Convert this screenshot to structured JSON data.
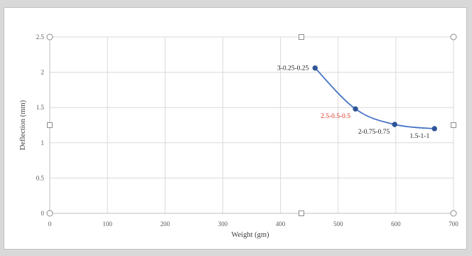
{
  "chart_data": {
    "type": "scatter",
    "title": "",
    "xlabel": "Weight  (gm)",
    "ylabel": "Deflection  (mm)",
    "xlim": [
      0,
      700
    ],
    "ylim": [
      0,
      2.5
    ],
    "x_ticks": [
      "0",
      "100",
      "200",
      "300",
      "400",
      "500",
      "600",
      "700"
    ],
    "y_ticks": [
      "0",
      "0.5",
      "1",
      "1.5",
      "2",
      "2.5"
    ],
    "grid": true,
    "legend": "none",
    "series": [
      {
        "line_color": "#4472c4",
        "marker_color": "#2e5597",
        "smooth": true,
        "points": [
          {
            "x": 460,
            "y": 2.06,
            "label": "3-0.25-0.25",
            "label_color": "#262626",
            "label_side": "left"
          },
          {
            "x": 530,
            "y": 1.48,
            "label": "2.5-0.5-0.5",
            "label_color": "#e0301e",
            "label_side": "left-below"
          },
          {
            "x": 598,
            "y": 1.26,
            "label": "2-0.75-0.75",
            "label_color": "#262626",
            "label_side": "left-below"
          },
          {
            "x": 667,
            "y": 1.2,
            "label": "1.5-1-1",
            "label_color": "#262626",
            "label_side": "left-below"
          }
        ]
      }
    ]
  },
  "colors": {
    "gridline": "#d9d9d9",
    "axis_line": "#bfbfbf",
    "frame_border": "#bfbfbf",
    "background": "#ffffff"
  }
}
